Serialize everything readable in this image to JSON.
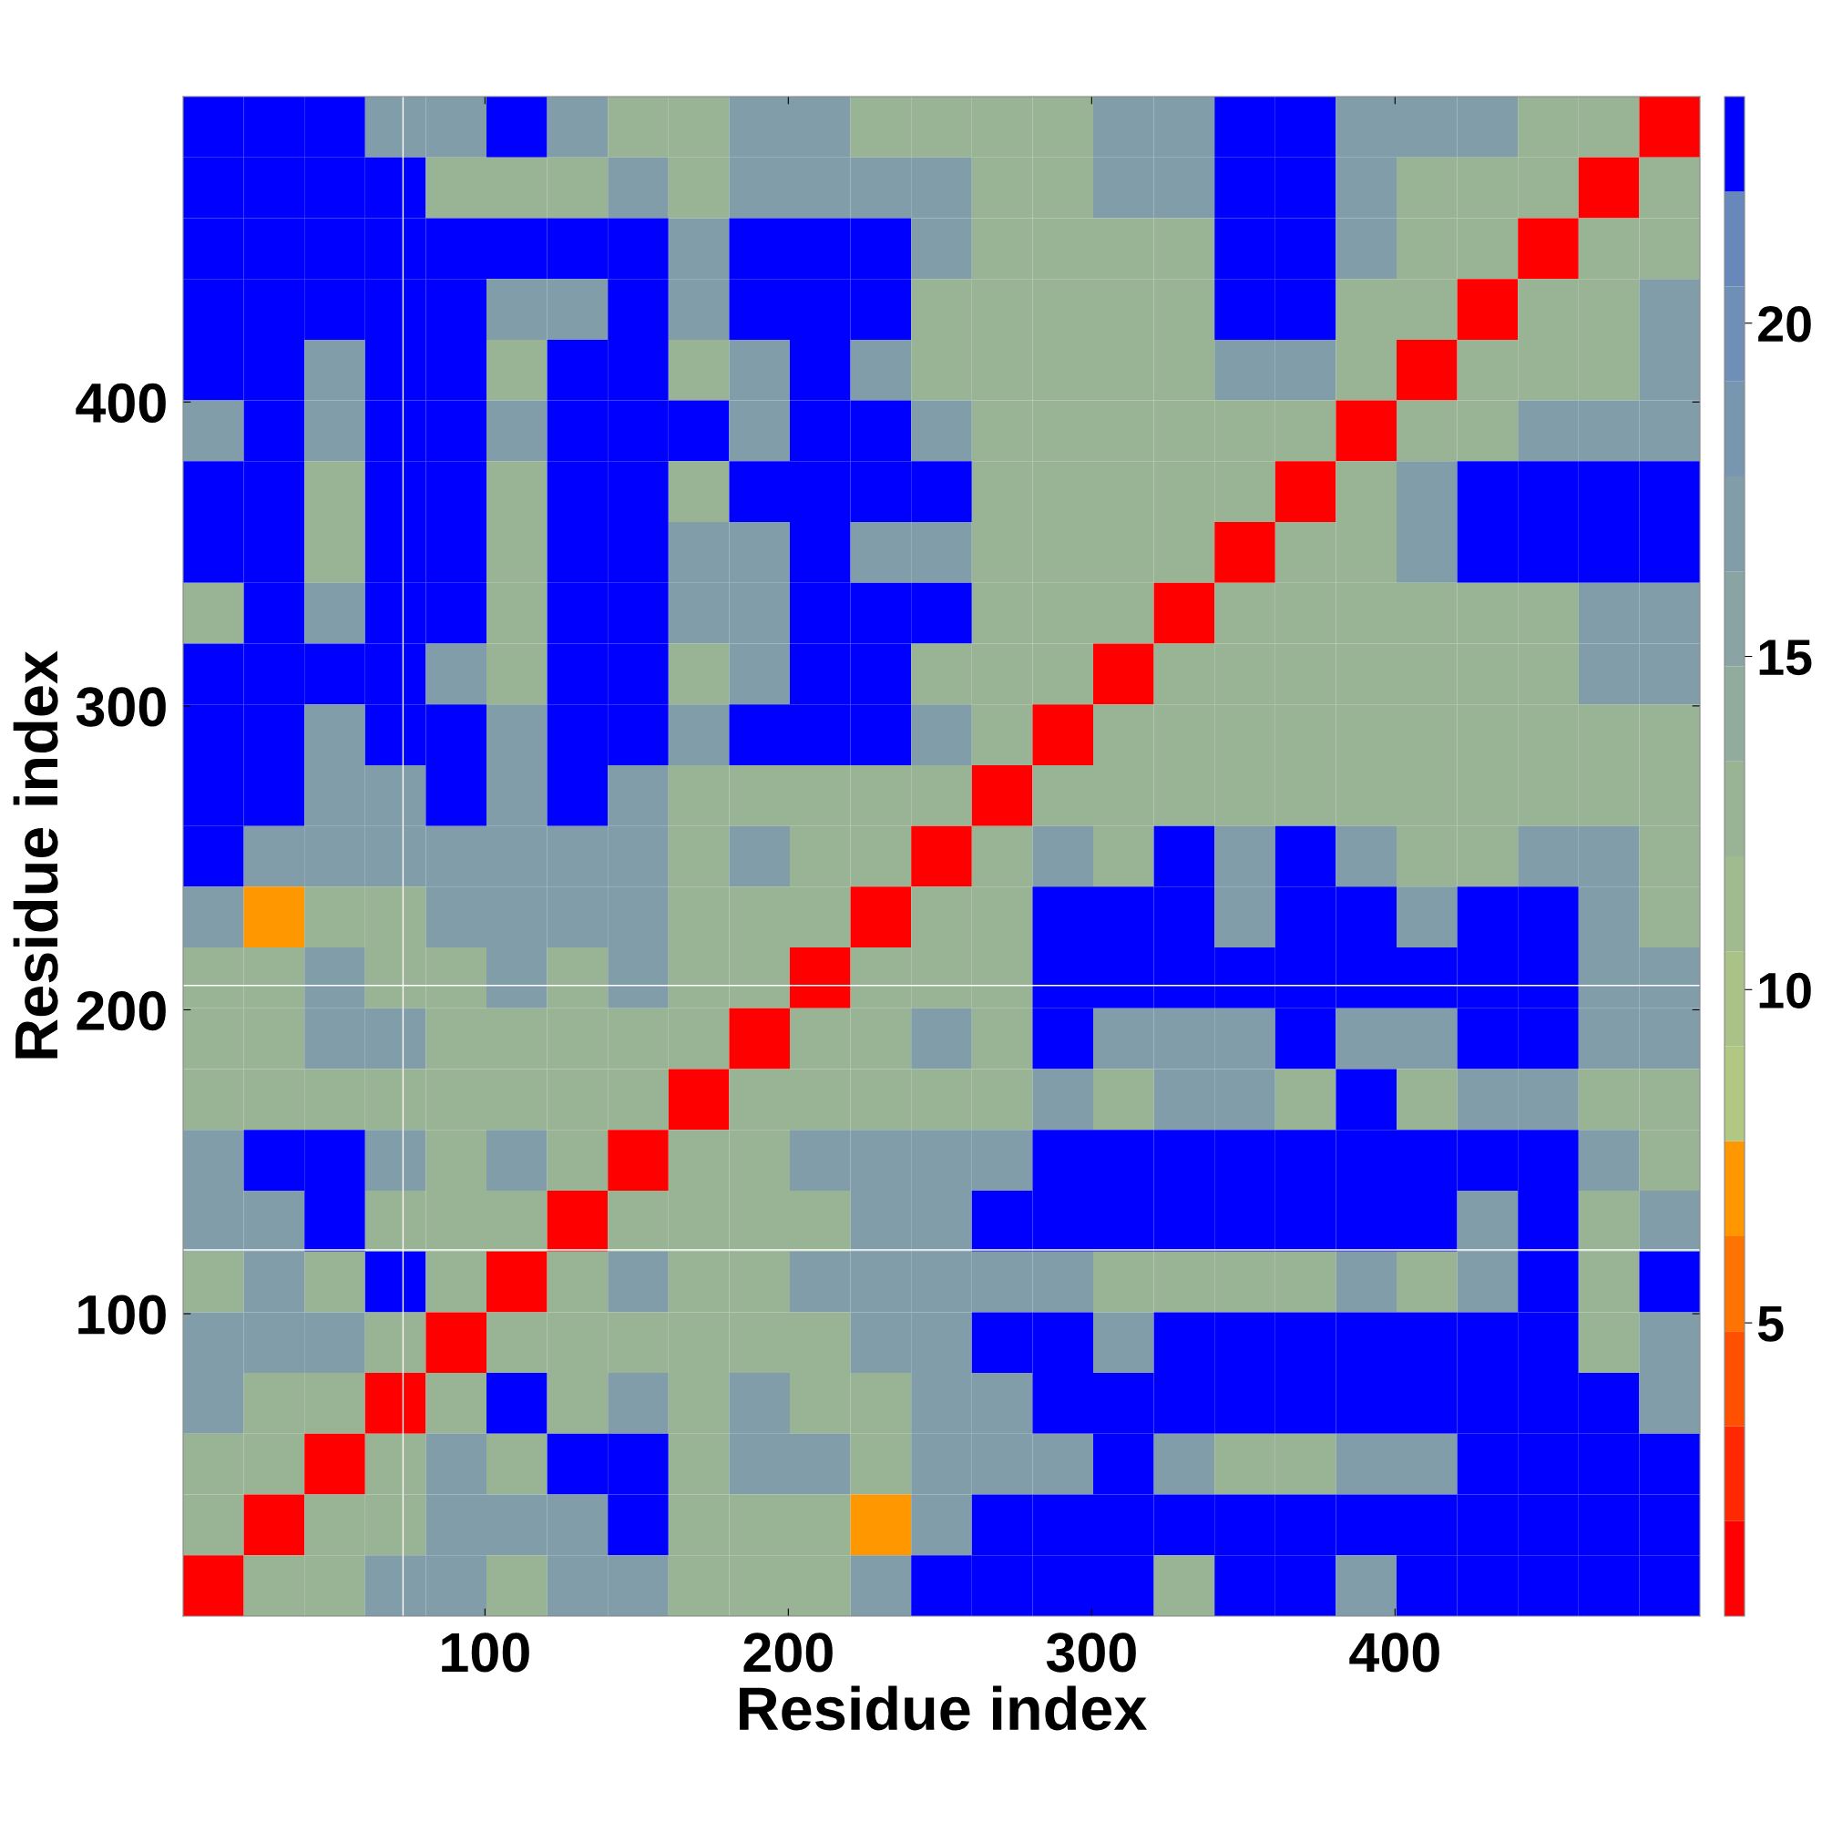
{
  "chart_data": {
    "type": "heatmap",
    "xlabel": "Residue index",
    "ylabel": "Residue index",
    "xlim": [
      0.5,
      500.5
    ],
    "ylim": [
      0.5,
      500.5
    ],
    "xticks": [
      100,
      200,
      300,
      400
    ],
    "yticks": [
      100,
      200,
      300,
      400
    ],
    "clim": [
      0.6,
      23.4
    ],
    "cticks": [
      5,
      10,
      15,
      20
    ],
    "ref_lines": [
      {
        "axis": "x",
        "value": 73,
        "color": "#ffffff"
      },
      {
        "axis": "y",
        "value": 208,
        "color": "#ffffff"
      },
      {
        "axis": "y",
        "value": 121,
        "color": "#ffffff"
      }
    ],
    "cells": [
      [
        23,
        23,
        23,
        17,
        17,
        23,
        17,
        12,
        12,
        17,
        17,
        12,
        12,
        12,
        12,
        17,
        17,
        23,
        23,
        17,
        17,
        17,
        12,
        12,
        2
      ],
      [
        23,
        23,
        23,
        23,
        12,
        12,
        12,
        17,
        12,
        17,
        17,
        17,
        17,
        12,
        12,
        17,
        17,
        23,
        23,
        17,
        12,
        12,
        12,
        2,
        12
      ],
      [
        23,
        23,
        23,
        23,
        23,
        23,
        23,
        23,
        17,
        23,
        23,
        23,
        17,
        12,
        12,
        12,
        12,
        23,
        23,
        17,
        12,
        12,
        2,
        12,
        12
      ],
      [
        23,
        23,
        23,
        23,
        23,
        17,
        17,
        23,
        17,
        23,
        23,
        23,
        12,
        12,
        12,
        12,
        12,
        23,
        23,
        12,
        12,
        2,
        12,
        12,
        17
      ],
      [
        23,
        23,
        17,
        23,
        23,
        12,
        23,
        23,
        12,
        17,
        23,
        17,
        12,
        12,
        12,
        12,
        12,
        17,
        17,
        12,
        2,
        12,
        12,
        12,
        17
      ],
      [
        17,
        23,
        17,
        23,
        23,
        17,
        23,
        23,
        23,
        17,
        23,
        23,
        17,
        12,
        12,
        12,
        12,
        12,
        12,
        2,
        12,
        12,
        17,
        17,
        17
      ],
      [
        23,
        23,
        12,
        23,
        23,
        12,
        23,
        23,
        12,
        23,
        23,
        23,
        23,
        12,
        12,
        12,
        12,
        12,
        2,
        12,
        17,
        23,
        23,
        23,
        23
      ],
      [
        23,
        23,
        12,
        23,
        23,
        12,
        23,
        23,
        17,
        17,
        23,
        17,
        17,
        12,
        12,
        12,
        12,
        2,
        12,
        12,
        17,
        23,
        23,
        23,
        23
      ],
      [
        12,
        23,
        17,
        23,
        23,
        12,
        23,
        23,
        17,
        17,
        23,
        23,
        23,
        12,
        12,
        12,
        2,
        12,
        12,
        12,
        12,
        12,
        12,
        17,
        17
      ],
      [
        23,
        23,
        23,
        23,
        17,
        12,
        23,
        23,
        12,
        17,
        23,
        23,
        12,
        12,
        12,
        2,
        12,
        12,
        12,
        12,
        12,
        12,
        12,
        17,
        17
      ],
      [
        23,
        23,
        17,
        23,
        23,
        17,
        23,
        23,
        17,
        23,
        23,
        23,
        17,
        12,
        2,
        12,
        12,
        12,
        12,
        12,
        12,
        12,
        12,
        12,
        12
      ],
      [
        23,
        23,
        17,
        17,
        23,
        17,
        23,
        17,
        12,
        12,
        12,
        12,
        12,
        2,
        12,
        12,
        12,
        12,
        12,
        12,
        12,
        12,
        12,
        12,
        12
      ],
      [
        23,
        17,
        17,
        17,
        17,
        17,
        17,
        17,
        12,
        17,
        12,
        12,
        2,
        12,
        17,
        12,
        23,
        17,
        23,
        17,
        12,
        12,
        17,
        17,
        12
      ],
      [
        17,
        7,
        12,
        12,
        17,
        17,
        17,
        17,
        12,
        12,
        12,
        2,
        12,
        12,
        23,
        23,
        23,
        17,
        23,
        23,
        17,
        23,
        23,
        17,
        12
      ],
      [
        12,
        12,
        17,
        12,
        12,
        17,
        12,
        17,
        12,
        12,
        2,
        12,
        12,
        12,
        23,
        23,
        23,
        23,
        23,
        23,
        23,
        23,
        23,
        17,
        17
      ],
      [
        12,
        12,
        17,
        17,
        12,
        12,
        12,
        12,
        12,
        2,
        12,
        12,
        17,
        12,
        23,
        17,
        17,
        17,
        23,
        17,
        17,
        23,
        23,
        17,
        17
      ],
      [
        12,
        12,
        12,
        12,
        12,
        12,
        12,
        12,
        2,
        12,
        12,
        12,
        12,
        12,
        17,
        12,
        17,
        17,
        12,
        23,
        12,
        17,
        17,
        12,
        12
      ],
      [
        17,
        23,
        23,
        17,
        12,
        17,
        12,
        2,
        12,
        12,
        17,
        17,
        17,
        17,
        23,
        23,
        23,
        23,
        23,
        23,
        23,
        23,
        23,
        17,
        12
      ],
      [
        17,
        17,
        23,
        12,
        12,
        12,
        2,
        12,
        12,
        12,
        12,
        17,
        17,
        23,
        23,
        23,
        23,
        23,
        23,
        23,
        23,
        17,
        23,
        12,
        17
      ],
      [
        12,
        17,
        12,
        23,
        12,
        2,
        12,
        17,
        12,
        12,
        17,
        17,
        17,
        17,
        17,
        12,
        12,
        12,
        12,
        17,
        12,
        17,
        23,
        12,
        23
      ],
      [
        17,
        17,
        17,
        12,
        2,
        12,
        12,
        12,
        12,
        12,
        12,
        17,
        17,
        23,
        23,
        17,
        23,
        23,
        23,
        23,
        23,
        23,
        23,
        12,
        17
      ],
      [
        17,
        12,
        12,
        2,
        12,
        23,
        12,
        17,
        12,
        17,
        12,
        12,
        17,
        17,
        23,
        23,
        23,
        23,
        23,
        23,
        23,
        23,
        23,
        23,
        17
      ],
      [
        12,
        12,
        2,
        12,
        17,
        12,
        23,
        23,
        12,
        17,
        17,
        12,
        17,
        17,
        17,
        23,
        17,
        12,
        12,
        17,
        17,
        23,
        23,
        23,
        23
      ],
      [
        12,
        2,
        12,
        12,
        17,
        17,
        17,
        23,
        12,
        12,
        12,
        7,
        17,
        23,
        23,
        23,
        23,
        23,
        23,
        23,
        23,
        23,
        23,
        23,
        23
      ],
      [
        2,
        12,
        12,
        17,
        17,
        12,
        17,
        17,
        12,
        12,
        12,
        17,
        23,
        23,
        23,
        23,
        12,
        23,
        23,
        17,
        23,
        23,
        23,
        23,
        23
      ]
    ]
  }
}
